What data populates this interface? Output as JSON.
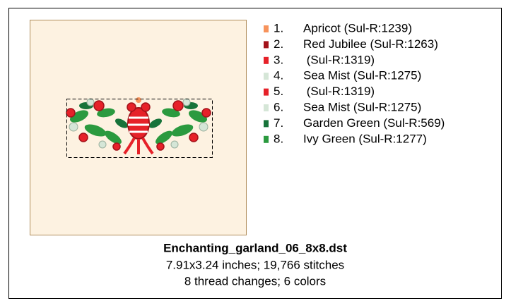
{
  "card": {
    "threads": [
      {
        "number": "1.",
        "name": "Apricot (Sul-R:1239)",
        "color": "#f7935c"
      },
      {
        "number": "2.",
        "name": "Red Jubilee (Sul-R:1263)",
        "color": "#a3121a"
      },
      {
        "number": "3.",
        "name": " (Sul-R:1319)",
        "color": "#e62129"
      },
      {
        "number": "4.",
        "name": "Sea Mist (Sul-R:1275)",
        "color": "#d5e6d7"
      },
      {
        "number": "5.",
        "name": " (Sul-R:1319)",
        "color": "#e62129"
      },
      {
        "number": "6.",
        "name": "Sea Mist (Sul-R:1275)",
        "color": "#d5e6d7"
      },
      {
        "number": "7.",
        "name": "Garden Green (Sul-R:569)",
        "color": "#17733a"
      },
      {
        "number": "8.",
        "name": "Ivy Green (Sul-R:1277)",
        "color": "#2b9a3f"
      }
    ],
    "filename": "Enchanting_garland_06_8x8.dst",
    "size_line": "7.91x3.24 inches; 19,766 stitches",
    "colors_line": "8 thread changes; 6 colors"
  }
}
